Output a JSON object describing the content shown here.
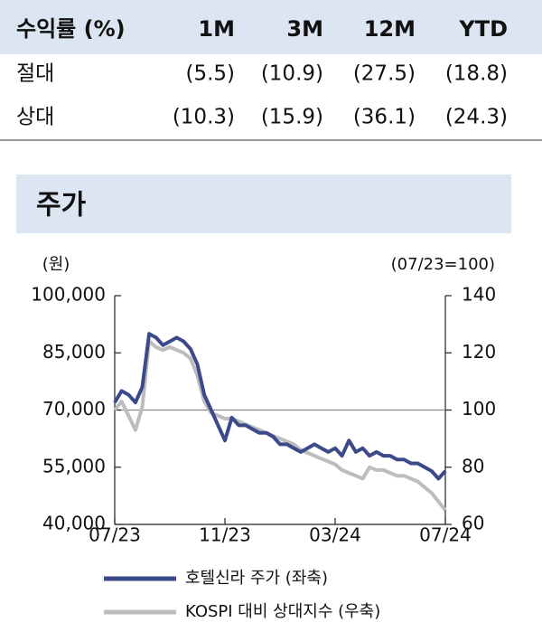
{
  "table": {
    "header": [
      "수익률 (%)",
      "1M",
      "3M",
      "12M",
      "YTD"
    ],
    "rows": [
      [
        "절대",
        "(5.5)",
        "(10.9)",
        "(27.5)",
        "(18.8)"
      ],
      [
        "상대",
        "(10.3)",
        "(15.9)",
        "(36.1)",
        "(24.3)"
      ]
    ]
  },
  "section_title": "주가",
  "chart_data": {
    "type": "line",
    "y_label": "(원)",
    "y2_label": "(07/23=100)",
    "x": [
      0,
      0.25,
      0.5,
      0.75,
      1,
      1.25,
      1.5,
      1.75,
      2,
      2.25,
      2.5,
      2.75,
      3,
      3.25,
      3.5,
      3.75,
      4,
      4.25,
      4.5,
      4.75,
      5,
      5.25,
      5.5,
      5.75,
      6,
      6.25,
      6.5,
      6.75,
      7,
      7.25,
      7.5,
      7.75,
      8,
      8.25,
      8.5,
      8.75,
      9,
      9.25,
      9.5,
      9.75,
      10,
      10.25,
      10.5,
      10.75,
      11,
      11.25,
      11.5,
      11.75,
      12
    ],
    "xlim": [
      0,
      12
    ],
    "xticks": [
      {
        "value": 0,
        "label": "07/23"
      },
      {
        "value": 4,
        "label": "11/23"
      },
      {
        "value": 8,
        "label": "03/24"
      },
      {
        "value": 12,
        "label": "07/24"
      }
    ],
    "ylim": [
      40000,
      100000
    ],
    "yticks": [
      {
        "value": 40000,
        "label": "40,000"
      },
      {
        "value": 55000,
        "label": "55,000"
      },
      {
        "value": 70000,
        "label": "70,000"
      },
      {
        "value": 85000,
        "label": "85,000"
      },
      {
        "value": 100000,
        "label": "100,000"
      }
    ],
    "y2lim": [
      60,
      140
    ],
    "y2ticks": [
      60,
      80,
      100,
      120,
      140
    ],
    "reference_y": 70000,
    "series": [
      {
        "name": "호텔신라 주가 (좌축)",
        "color": "#3c4a8a",
        "values": [
          72000,
          75000,
          74000,
          72000,
          76000,
          90000,
          89000,
          87000,
          88000,
          89000,
          88000,
          86000,
          82000,
          74000,
          70000,
          66000,
          62000,
          68000,
          66000,
          66000,
          65000,
          64000,
          64000,
          63000,
          61000,
          61000,
          60000,
          59000,
          60000,
          61000,
          60000,
          59000,
          60000,
          58000,
          62000,
          59000,
          60000,
          58000,
          59000,
          58000,
          58000,
          57000,
          57000,
          56000,
          56000,
          55000,
          54000,
          52000,
          54000
        ]
      },
      {
        "name": "KOSPI 대비 상대지수 (우축)",
        "color": "#bdbdbd",
        "axis": "y2",
        "values": [
          100,
          103,
          98,
          93,
          101,
          124,
          122,
          121,
          122,
          121,
          120,
          118,
          112,
          103,
          99,
          98,
          97,
          97,
          96,
          95,
          94,
          93,
          92,
          91,
          90,
          89,
          88,
          86,
          85,
          84,
          83,
          82,
          81,
          79,
          78,
          77,
          76,
          80,
          79,
          79,
          78,
          77,
          77,
          76,
          75,
          73,
          71,
          68,
          65
        ]
      }
    ]
  }
}
